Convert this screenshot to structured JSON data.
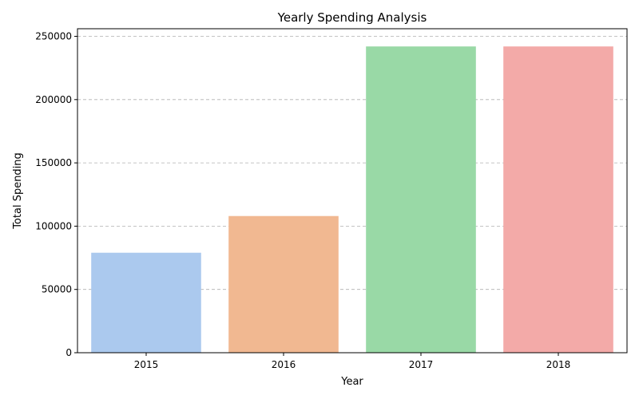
{
  "chart_data": {
    "type": "bar",
    "title": "Yearly Spending Analysis",
    "xlabel": "Year",
    "ylabel": "Total Spending",
    "categories": [
      "2015",
      "2016",
      "2017",
      "2018"
    ],
    "values": [
      79000,
      108000,
      242000,
      242000
    ],
    "colors": [
      "#abc9ee",
      "#f1b891",
      "#99d9a6",
      "#f3aaa8"
    ],
    "ylim": [
      0,
      256000
    ],
    "yticks": [
      0,
      50000,
      100000,
      150000,
      200000,
      250000
    ],
    "grid": "y-dashed"
  }
}
